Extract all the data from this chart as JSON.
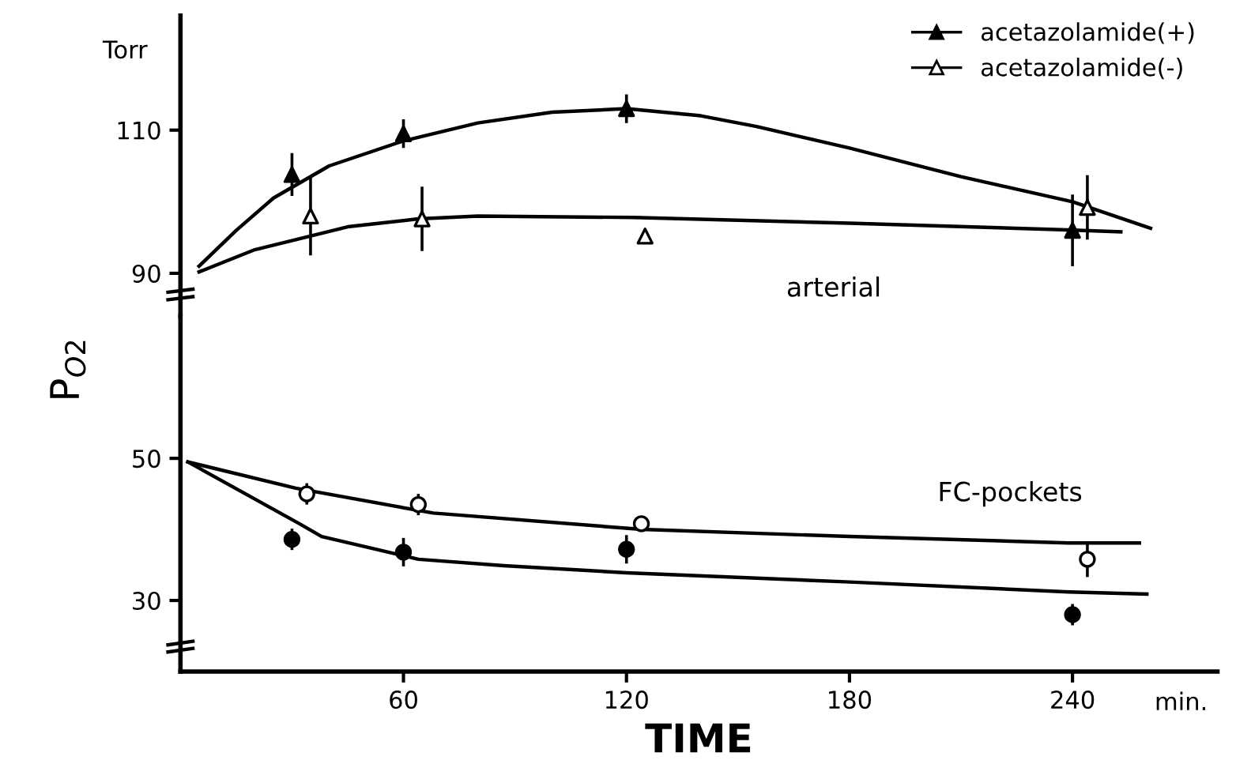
{
  "chart_data": [
    {
      "type": "scatter",
      "annotations": [
        "Torr",
        "arterial"
      ],
      "legend": "top right",
      "xlim": [
        0,
        279
      ],
      "ylim": [
        84,
        126
      ],
      "yticks": [
        90,
        110
      ],
      "tick_labels": "y",
      "series": [
        {
          "name": "acetazolamide(+)",
          "color": "#000000",
          "marker": "triangle",
          "x": [
            30,
            60,
            120,
            240
          ],
          "values": [
            103.8,
            109.5,
            113,
            96
          ],
          "errors": [
            3,
            2,
            2,
            5
          ]
        },
        {
          "name": "acetazolamide(-)",
          "color": "#000000",
          "marker": "triangle",
          "x": [
            35,
            65,
            125,
            244
          ],
          "values": [
            98,
            97.6,
            95.2,
            99.2
          ],
          "errors": [
            5.5,
            4.5,
            null,
            4.5
          ]
        },
        {
          "type": "line",
          "color": "#000000",
          "marker": "none",
          "x": [
            5,
            15,
            25,
            40,
            60,
            80,
            100,
            120,
            140,
            155,
            180,
            210,
            240,
            261
          ],
          "values": [
            91,
            96,
            100.5,
            105,
            108.5,
            111,
            112.5,
            113,
            112,
            110.5,
            107.5,
            103.5,
            100,
            96.3
          ]
        },
        {
          "type": "line",
          "color": "#000000",
          "marker": "none",
          "x": [
            5,
            20,
            31,
            45,
            64,
            80,
            122,
            180,
            237,
            253
          ],
          "values": [
            90.2,
            93.3,
            94.7,
            96.5,
            97.6,
            98,
            97.8,
            97,
            96.1,
            95.8
          ]
        }
      ]
    },
    {
      "type": "scatter",
      "xlabel": "TIME",
      "ylabel": "P$_{O2}$",
      "annotations": [
        "min.",
        "FC-pockets"
      ],
      "xlim": [
        0,
        279
      ],
      "xticks": [
        60,
        120,
        180,
        240
      ],
      "ylim": [
        20,
        70
      ],
      "yticks": [
        30,
        50
      ],
      "series": [
        {
          "color": "#000000",
          "marker": "circle",
          "x": [
            30,
            60,
            120,
            240
          ],
          "values": [
            38.6,
            36.8,
            37.2,
            28
          ],
          "errors": [
            1.5,
            2,
            2,
            1.5
          ]
        },
        {
          "color": "#000000",
          "marker": "circle",
          "x": [
            34,
            64,
            124,
            244
          ],
          "values": [
            45,
            43.5,
            40.8,
            35.8
          ],
          "errors": [
            1.5,
            1.5,
            null,
            2.5
          ]
        },
        {
          "type": "line",
          "color": "#000000",
          "marker": "none",
          "x": [
            2,
            32,
            38,
            64,
            87,
            120,
            180,
            239,
            260
          ],
          "values": [
            49.5,
            40.8,
            39,
            35.8,
            34.9,
            33.9,
            32.6,
            31.2,
            30.9
          ]
        },
        {
          "type": "line",
          "color": "#000000",
          "marker": "none",
          "x": [
            2,
            31,
            68,
            124,
            180,
            239,
            258
          ],
          "values": [
            49.5,
            45.8,
            42.3,
            40,
            39,
            38.1,
            38.1
          ]
        }
      ]
    }
  ]
}
